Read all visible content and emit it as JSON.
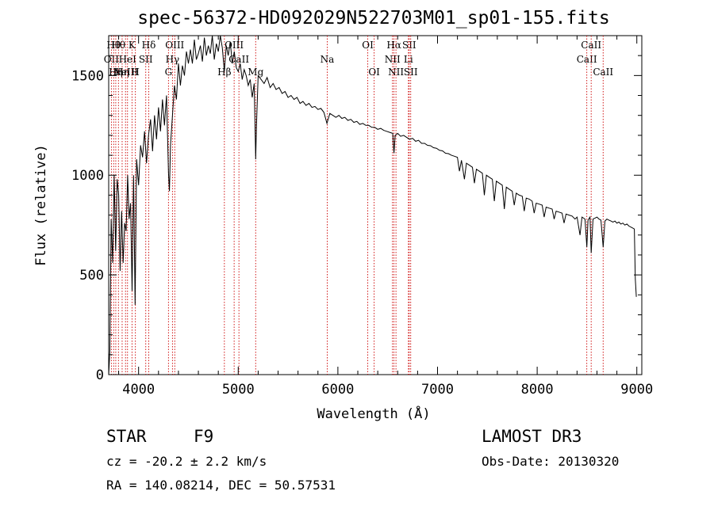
{
  "chart_data": {
    "type": "line",
    "title": "spec-56372-HD092029N522703M01_sp01-155.fits",
    "xlabel": "Wavelength (Å)",
    "ylabel": "Flux (relative)",
    "xlim": [
      3700,
      9050
    ],
    "ylim": [
      0,
      1700
    ],
    "xticks": [
      4000,
      5000,
      6000,
      7000,
      8000,
      9000
    ],
    "yticks": [
      0,
      500,
      1000,
      1500
    ],
    "grid": false,
    "series": [
      {
        "color": "#000000",
        "points": [
          [
            3700,
            0
          ],
          [
            3712,
            120
          ],
          [
            3725,
            780
          ],
          [
            3740,
            560
          ],
          [
            3755,
            1000
          ],
          [
            3770,
            620
          ],
          [
            3785,
            980
          ],
          [
            3800,
            900
          ],
          [
            3815,
            520
          ],
          [
            3830,
            820
          ],
          [
            3845,
            560
          ],
          [
            3860,
            760
          ],
          [
            3875,
            720
          ],
          [
            3890,
            1000
          ],
          [
            3905,
            780
          ],
          [
            3920,
            860
          ],
          [
            3935,
            420
          ],
          [
            3950,
            1000
          ],
          [
            3965,
            350
          ],
          [
            3980,
            1080
          ],
          [
            4000,
            950
          ],
          [
            4020,
            1150
          ],
          [
            4040,
            1090
          ],
          [
            4060,
            1220
          ],
          [
            4080,
            1060
          ],
          [
            4100,
            1200
          ],
          [
            4120,
            1280
          ],
          [
            4140,
            1120
          ],
          [
            4160,
            1300
          ],
          [
            4180,
            1180
          ],
          [
            4200,
            1340
          ],
          [
            4220,
            1220
          ],
          [
            4240,
            1380
          ],
          [
            4260,
            1250
          ],
          [
            4280,
            1400
          ],
          [
            4300,
            1010
          ],
          [
            4310,
            920
          ],
          [
            4320,
            1150
          ],
          [
            4340,
            1300
          ],
          [
            4360,
            1450
          ],
          [
            4380,
            1380
          ],
          [
            4400,
            1560
          ],
          [
            4420,
            1450
          ],
          [
            4440,
            1550
          ],
          [
            4460,
            1500
          ],
          [
            4480,
            1620
          ],
          [
            4500,
            1560
          ],
          [
            4520,
            1630
          ],
          [
            4540,
            1560
          ],
          [
            4560,
            1680
          ],
          [
            4580,
            1580
          ],
          [
            4600,
            1610
          ],
          [
            4620,
            1650
          ],
          [
            4640,
            1570
          ],
          [
            4660,
            1690
          ],
          [
            4680,
            1600
          ],
          [
            4700,
            1650
          ],
          [
            4720,
            1610
          ],
          [
            4740,
            1700
          ],
          [
            4760,
            1580
          ],
          [
            4780,
            1660
          ],
          [
            4800,
            1620
          ],
          [
            4820,
            1700
          ],
          [
            4840,
            1640
          ],
          [
            4861,
            1520
          ],
          [
            4880,
            1650
          ],
          [
            4900,
            1600
          ],
          [
            4920,
            1670
          ],
          [
            4940,
            1560
          ],
          [
            4960,
            1620
          ],
          [
            4980,
            1540
          ],
          [
            5000,
            1520
          ],
          [
            5020,
            1560
          ],
          [
            5040,
            1480
          ],
          [
            5060,
            1530
          ],
          [
            5080,
            1500
          ],
          [
            5100,
            1450
          ],
          [
            5120,
            1480
          ],
          [
            5140,
            1390
          ],
          [
            5160,
            1460
          ],
          [
            5175,
            1080
          ],
          [
            5183,
            1250
          ],
          [
            5200,
            1500
          ],
          [
            5230,
            1480
          ],
          [
            5260,
            1460
          ],
          [
            5290,
            1490
          ],
          [
            5320,
            1440
          ],
          [
            5350,
            1460
          ],
          [
            5380,
            1430
          ],
          [
            5410,
            1440
          ],
          [
            5440,
            1410
          ],
          [
            5470,
            1420
          ],
          [
            5500,
            1390
          ],
          [
            5530,
            1400
          ],
          [
            5560,
            1380
          ],
          [
            5590,
            1390
          ],
          [
            5620,
            1360
          ],
          [
            5650,
            1370
          ],
          [
            5680,
            1350
          ],
          [
            5710,
            1360
          ],
          [
            5740,
            1340
          ],
          [
            5770,
            1345
          ],
          [
            5800,
            1330
          ],
          [
            5830,
            1335
          ],
          [
            5860,
            1315
          ],
          [
            5890,
            1260
          ],
          [
            5920,
            1310
          ],
          [
            5950,
            1300
          ],
          [
            5980,
            1290
          ],
          [
            6010,
            1300
          ],
          [
            6040,
            1285
          ],
          [
            6070,
            1290
          ],
          [
            6100,
            1275
          ],
          [
            6130,
            1280
          ],
          [
            6160,
            1265
          ],
          [
            6190,
            1270
          ],
          [
            6220,
            1255
          ],
          [
            6250,
            1260
          ],
          [
            6280,
            1250
          ],
          [
            6310,
            1250
          ],
          [
            6340,
            1240
          ],
          [
            6370,
            1240
          ],
          [
            6400,
            1230
          ],
          [
            6430,
            1235
          ],
          [
            6460,
            1225
          ],
          [
            6490,
            1220
          ],
          [
            6520,
            1215
          ],
          [
            6550,
            1210
          ],
          [
            6563,
            1110
          ],
          [
            6575,
            1200
          ],
          [
            6600,
            1210
          ],
          [
            6630,
            1195
          ],
          [
            6660,
            1200
          ],
          [
            6690,
            1190
          ],
          [
            6720,
            1180
          ],
          [
            6750,
            1185
          ],
          [
            6780,
            1170
          ],
          [
            6810,
            1175
          ],
          [
            6840,
            1160
          ],
          [
            6870,
            1160
          ],
          [
            6900,
            1150
          ],
          [
            6930,
            1148
          ],
          [
            6960,
            1138
          ],
          [
            6990,
            1135
          ],
          [
            7020,
            1125
          ],
          [
            7050,
            1122
          ],
          [
            7080,
            1110
          ],
          [
            7110,
            1108
          ],
          [
            7140,
            1100
          ],
          [
            7170,
            1095
          ],
          [
            7200,
            1090
          ],
          [
            7220,
            1020
          ],
          [
            7240,
            1075
          ],
          [
            7270,
            980
          ],
          [
            7290,
            1060
          ],
          [
            7320,
            1050
          ],
          [
            7350,
            1040
          ],
          [
            7370,
            960
          ],
          [
            7390,
            1030
          ],
          [
            7420,
            1020
          ],
          [
            7450,
            1010
          ],
          [
            7470,
            900
          ],
          [
            7490,
            1000
          ],
          [
            7520,
            990
          ],
          [
            7550,
            980
          ],
          [
            7570,
            870
          ],
          [
            7590,
            970
          ],
          [
            7620,
            960
          ],
          [
            7650,
            950
          ],
          [
            7670,
            830
          ],
          [
            7690,
            940
          ],
          [
            7720,
            930
          ],
          [
            7750,
            920
          ],
          [
            7770,
            850
          ],
          [
            7790,
            910
          ],
          [
            7820,
            900
          ],
          [
            7850,
            895
          ],
          [
            7870,
            820
          ],
          [
            7890,
            885
          ],
          [
            7920,
            880
          ],
          [
            7950,
            870
          ],
          [
            7970,
            810
          ],
          [
            7990,
            860
          ],
          [
            8020,
            855
          ],
          [
            8050,
            850
          ],
          [
            8070,
            790
          ],
          [
            8090,
            840
          ],
          [
            8120,
            835
          ],
          [
            8150,
            830
          ],
          [
            8170,
            780
          ],
          [
            8190,
            820
          ],
          [
            8220,
            815
          ],
          [
            8250,
            810
          ],
          [
            8270,
            760
          ],
          [
            8290,
            805
          ],
          [
            8320,
            800
          ],
          [
            8350,
            795
          ],
          [
            8380,
            780
          ],
          [
            8400,
            790
          ],
          [
            8430,
            700
          ],
          [
            8450,
            790
          ],
          [
            8480,
            780
          ],
          [
            8498,
            640
          ],
          [
            8510,
            775
          ],
          [
            8530,
            790
          ],
          [
            8542,
            610
          ],
          [
            8560,
            780
          ],
          [
            8580,
            785
          ],
          [
            8600,
            790
          ],
          [
            8620,
            780
          ],
          [
            8640,
            775
          ],
          [
            8662,
            640
          ],
          [
            8680,
            770
          ],
          [
            8700,
            780
          ],
          [
            8720,
            775
          ],
          [
            8740,
            770
          ],
          [
            8760,
            765
          ],
          [
            8780,
            770
          ],
          [
            8800,
            760
          ],
          [
            8820,
            765
          ],
          [
            8840,
            755
          ],
          [
            8860,
            760
          ],
          [
            8880,
            750
          ],
          [
            8900,
            755
          ],
          [
            8920,
            745
          ],
          [
            8940,
            740
          ],
          [
            8960,
            735
          ],
          [
            8975,
            730
          ],
          [
            8985,
            480
          ],
          [
            8995,
            390
          ]
        ]
      }
    ],
    "line_markers": [
      {
        "wave": 3727,
        "label": "OII",
        "row": 1
      },
      {
        "wave": 3750,
        "label": "Hθ",
        "row": 0
      },
      {
        "wave": 3771,
        "label": "Hη",
        "row": 2
      },
      {
        "wave": 3798,
        "label": "Hθ",
        "row": 0
      },
      {
        "wave": 3835,
        "label": "Hη",
        "row": 2
      },
      {
        "wave": 3869,
        "label": "NeIII",
        "row": 2
      },
      {
        "wave": 3889,
        "label": "HeI",
        "row": 1
      },
      {
        "wave": 3934,
        "label": "K",
        "row": 0
      },
      {
        "wave": 3968,
        "label": "H",
        "row": 2
      },
      {
        "wave": 4072,
        "label": "SII",
        "row": 1
      },
      {
        "wave": 4102,
        "label": "Hδ",
        "row": 0
      },
      {
        "wave": 4300,
        "label": "G",
        "row": 2
      },
      {
        "wave": 4340,
        "label": "Hγ",
        "row": 1
      },
      {
        "wave": 4363,
        "label": "OIII",
        "row": 0
      },
      {
        "wave": 4861,
        "label": "Hβ",
        "row": 2
      },
      {
        "wave": 4959,
        "label": "OIII",
        "row": 0
      },
      {
        "wave": 5007,
        "label": "CaII",
        "row": 1
      },
      {
        "wave": 5175,
        "label": "Mg",
        "row": 2
      },
      {
        "wave": 5893,
        "label": "Na",
        "row": 1
      },
      {
        "wave": 6300,
        "label": "OI",
        "row": 0
      },
      {
        "wave": 6364,
        "label": "OI",
        "row": 2
      },
      {
        "wave": 6548,
        "label": "NII",
        "row": 1
      },
      {
        "wave": 6563,
        "label": "Hα",
        "row": 0
      },
      {
        "wave": 6583,
        "label": "NII",
        "row": 2
      },
      {
        "wave": 6708,
        "label": "Li",
        "row": 1
      },
      {
        "wave": 6716,
        "label": "SII",
        "row": 0
      },
      {
        "wave": 6731,
        "label": "SII",
        "row": 2
      },
      {
        "wave": 8498,
        "label": "CaII",
        "row": 1
      },
      {
        "wave": 8542,
        "label": "CaII",
        "row": 0
      },
      {
        "wave": 8662,
        "label": "CaII",
        "row": 2
      }
    ]
  },
  "info": {
    "class_label": "STAR",
    "subclass": "F9",
    "survey": "LAMOST DR3",
    "redshift": "cz = -20.2 ± 2.2 km/s",
    "obs_date": "Obs-Date: 20130320",
    "coords": "RA = 140.08214, DEC =  50.57531"
  },
  "colors": {
    "marker_line": "#cc0000",
    "spectrum": "#000000",
    "text": "#000000"
  }
}
